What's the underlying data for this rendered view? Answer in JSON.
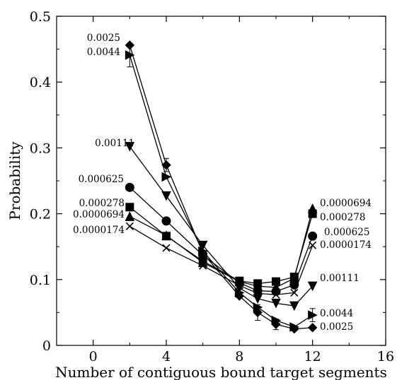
{
  "chart_data": {
    "type": "line",
    "title": "",
    "xlabel": "Number of contiguous bound target segments",
    "ylabel": "Probability",
    "xlim": [
      -2,
      16
    ],
    "ylim": [
      0,
      0.5
    ],
    "xticks": [
      0,
      4,
      8,
      12,
      16
    ],
    "yticks": [
      0,
      0.1,
      0.2,
      0.3,
      0.4,
      0.5
    ],
    "x": [
      2,
      4,
      6,
      8,
      9,
      10,
      11,
      12
    ],
    "grid": false,
    "legend": "none",
    "series": [
      {
        "name": "0.0025",
        "marker": "diamond",
        "values": [
          0.456,
          0.274,
          0.14,
          0.075,
          0.05,
          0.032,
          0.025,
          0.027
        ]
      },
      {
        "name": "0.0044",
        "marker": "triangle-right",
        "values": [
          0.441,
          0.256,
          0.143,
          0.08,
          0.058,
          0.038,
          0.028,
          0.046
        ]
      },
      {
        "name": "0.00111",
        "marker": "triangle-down",
        "values": [
          0.302,
          0.227,
          0.152,
          0.087,
          0.071,
          0.064,
          0.06,
          0.09
        ]
      },
      {
        "name": "0.000625",
        "marker": "circle",
        "values": [
          0.24,
          0.189,
          0.137,
          0.095,
          0.083,
          0.082,
          0.092,
          0.166
        ]
      },
      {
        "name": "0.000278",
        "marker": "square",
        "values": [
          0.21,
          0.166,
          0.128,
          0.098,
          0.094,
          0.097,
          0.104,
          0.2
        ]
      },
      {
        "name": "0.0000694",
        "marker": "triangle-up",
        "values": [
          0.196,
          0.167,
          0.126,
          0.097,
          0.09,
          0.088,
          0.102,
          0.208
        ]
      },
      {
        "name": "0.0000174",
        "marker": "cross",
        "values": [
          0.181,
          0.148,
          0.121,
          0.091,
          0.079,
          0.077,
          0.08,
          0.152
        ]
      }
    ],
    "left_labels": [
      "0.0025",
      "0.0044",
      "0.00111",
      "0.000625",
      "0.000278",
      "0.0000694",
      "0.0000174"
    ],
    "right_labels": [
      "0.0000694",
      "0.000278",
      "0.000625",
      "0.0000174",
      "0.00111",
      "0.0044",
      "0.0025"
    ]
  }
}
